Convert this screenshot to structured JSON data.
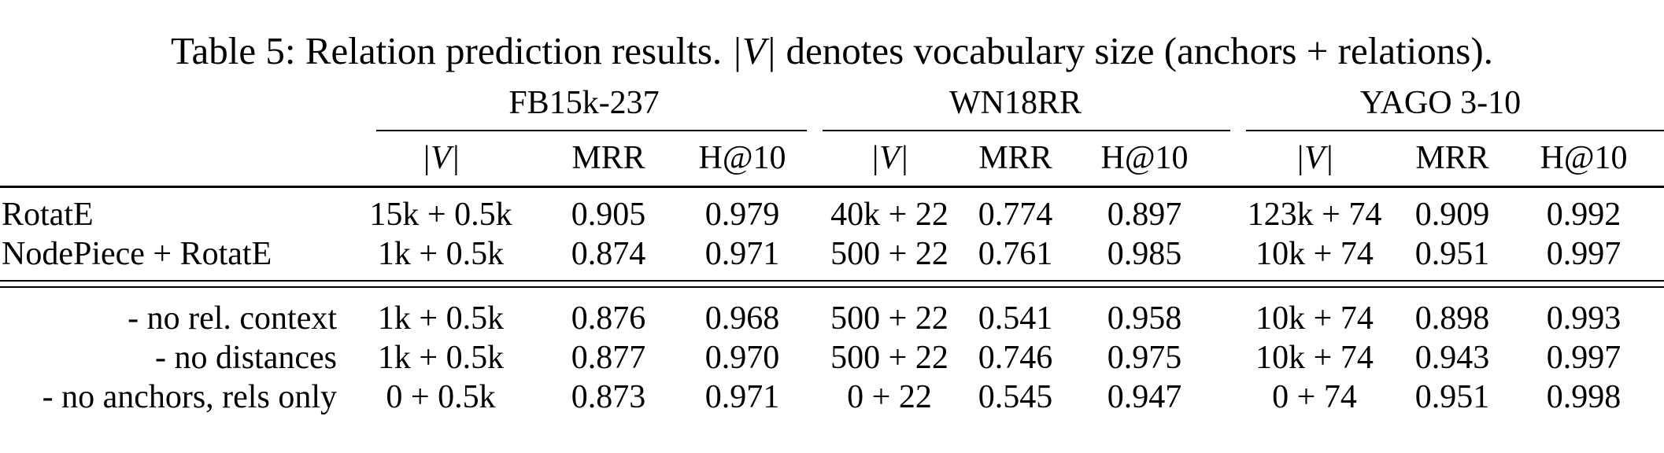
{
  "caption": {
    "prefix": "Table 5: Relation prediction results. ",
    "symbol": "|V|",
    "suffix": " denotes vocabulary size (anchors + relations)."
  },
  "groups": [
    "FB15k-237",
    "WN18RR",
    "YAGO 3-10"
  ],
  "col_headers": [
    "|V|",
    "MRR",
    "H@10"
  ],
  "main_rows": [
    {
      "label": "RotatE",
      "values": [
        "15k + 0.5k",
        "0.905",
        "0.979",
        "40k + 22",
        "0.774",
        "0.897",
        "123k + 74",
        "0.909",
        "0.992"
      ]
    },
    {
      "label": "NodePiece + RotatE",
      "values": [
        "1k + 0.5k",
        "0.874",
        "0.971",
        "500 + 22",
        "0.761",
        "0.985",
        "10k + 74",
        "0.951",
        "0.997"
      ]
    }
  ],
  "ablation_rows": [
    {
      "label": "- no rel. context",
      "values": [
        "1k + 0.5k",
        "0.876",
        "0.968",
        "500 + 22",
        "0.541",
        "0.958",
        "10k + 74",
        "0.898",
        "0.993"
      ]
    },
    {
      "label": "- no distances",
      "values": [
        "1k + 0.5k",
        "0.877",
        "0.970",
        "500 + 22",
        "0.746",
        "0.975",
        "10k + 74",
        "0.943",
        "0.997"
      ]
    },
    {
      "label": "- no anchors, rels only",
      "values": [
        "0 + 0.5k",
        "0.873",
        "0.971",
        "0 + 22",
        "0.545",
        "0.947",
        "0 + 74",
        "0.951",
        "0.998"
      ]
    }
  ]
}
